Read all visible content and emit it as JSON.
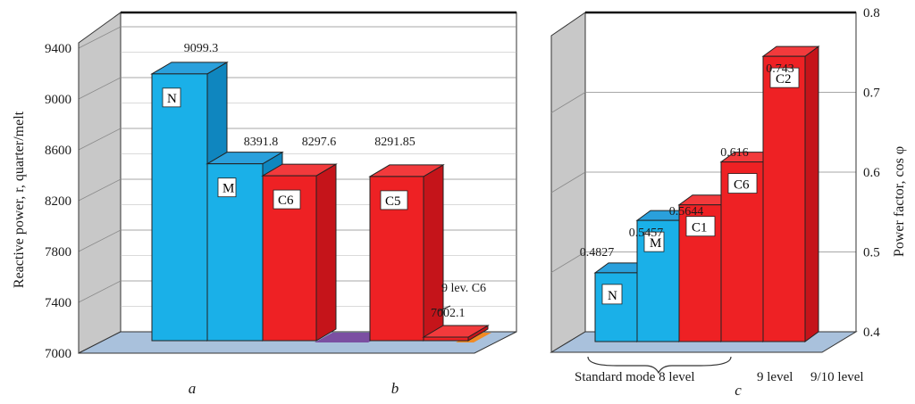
{
  "colors": {
    "blue": "#1ab0e8",
    "blue_top": "#2aa0dc",
    "blue_side": "#0f86bf",
    "red": "#ee2124",
    "red_top": "#f23a3c",
    "red_side": "#c5141a",
    "floor": "#a9c1dc",
    "wall": "#c8c8c8",
    "purple": "#7b4fa2",
    "orange": "#f08a24"
  },
  "chart_data": [
    {
      "id": "left",
      "type": "bar",
      "ylabel": "Reactive power, r, quarter/melt",
      "ylim": [
        7000,
        9400
      ],
      "yticks": [
        7000,
        7400,
        7800,
        8200,
        8600,
        9000,
        9400
      ],
      "panels": [
        "a",
        "b"
      ],
      "bars": [
        {
          "label": "N",
          "value": 9099.3,
          "value_text": "9099.3",
          "color": "blue",
          "panel": "a"
        },
        {
          "label": "M",
          "value": 8391.8,
          "value_text": "8391.8",
          "color": "blue",
          "panel": "a"
        },
        {
          "label": "C6",
          "value": 8297.6,
          "value_text": "8297.6",
          "color": "red",
          "panel": "a"
        },
        {
          "label": "C5",
          "value": 8291.85,
          "value_text": "8291.85",
          "color": "red",
          "panel": "b"
        },
        {
          "label": "",
          "value": 7002.1,
          "value_text": "7002.1",
          "color": "red",
          "panel": "b",
          "annotation": "9 lev. C6"
        }
      ]
    },
    {
      "id": "right",
      "type": "bar",
      "ylabel": "Power factor, cos φ",
      "ylim": [
        0.4,
        0.8
      ],
      "yticks": [
        "0.4",
        "0.5",
        "0.6",
        "0.7",
        "0.8"
      ],
      "panels": [
        "c"
      ],
      "bars": [
        {
          "label": "N",
          "value": 0.4827,
          "value_text": "0.4827",
          "color": "blue"
        },
        {
          "label": "M",
          "value": 0.5457,
          "value_text": "0.5457",
          "color": "blue"
        },
        {
          "label": "C1",
          "value": 0.5644,
          "value_text": "0.5644",
          "color": "red"
        },
        {
          "label": "C6",
          "value": 0.616,
          "value_text": "0.616",
          "color": "red"
        },
        {
          "label": "C2",
          "value": 0.743,
          "value_text": "0.743",
          "color": "red"
        }
      ],
      "category_groups": [
        "Standard mode 8 level",
        "9 level",
        "9/10 level"
      ]
    }
  ]
}
